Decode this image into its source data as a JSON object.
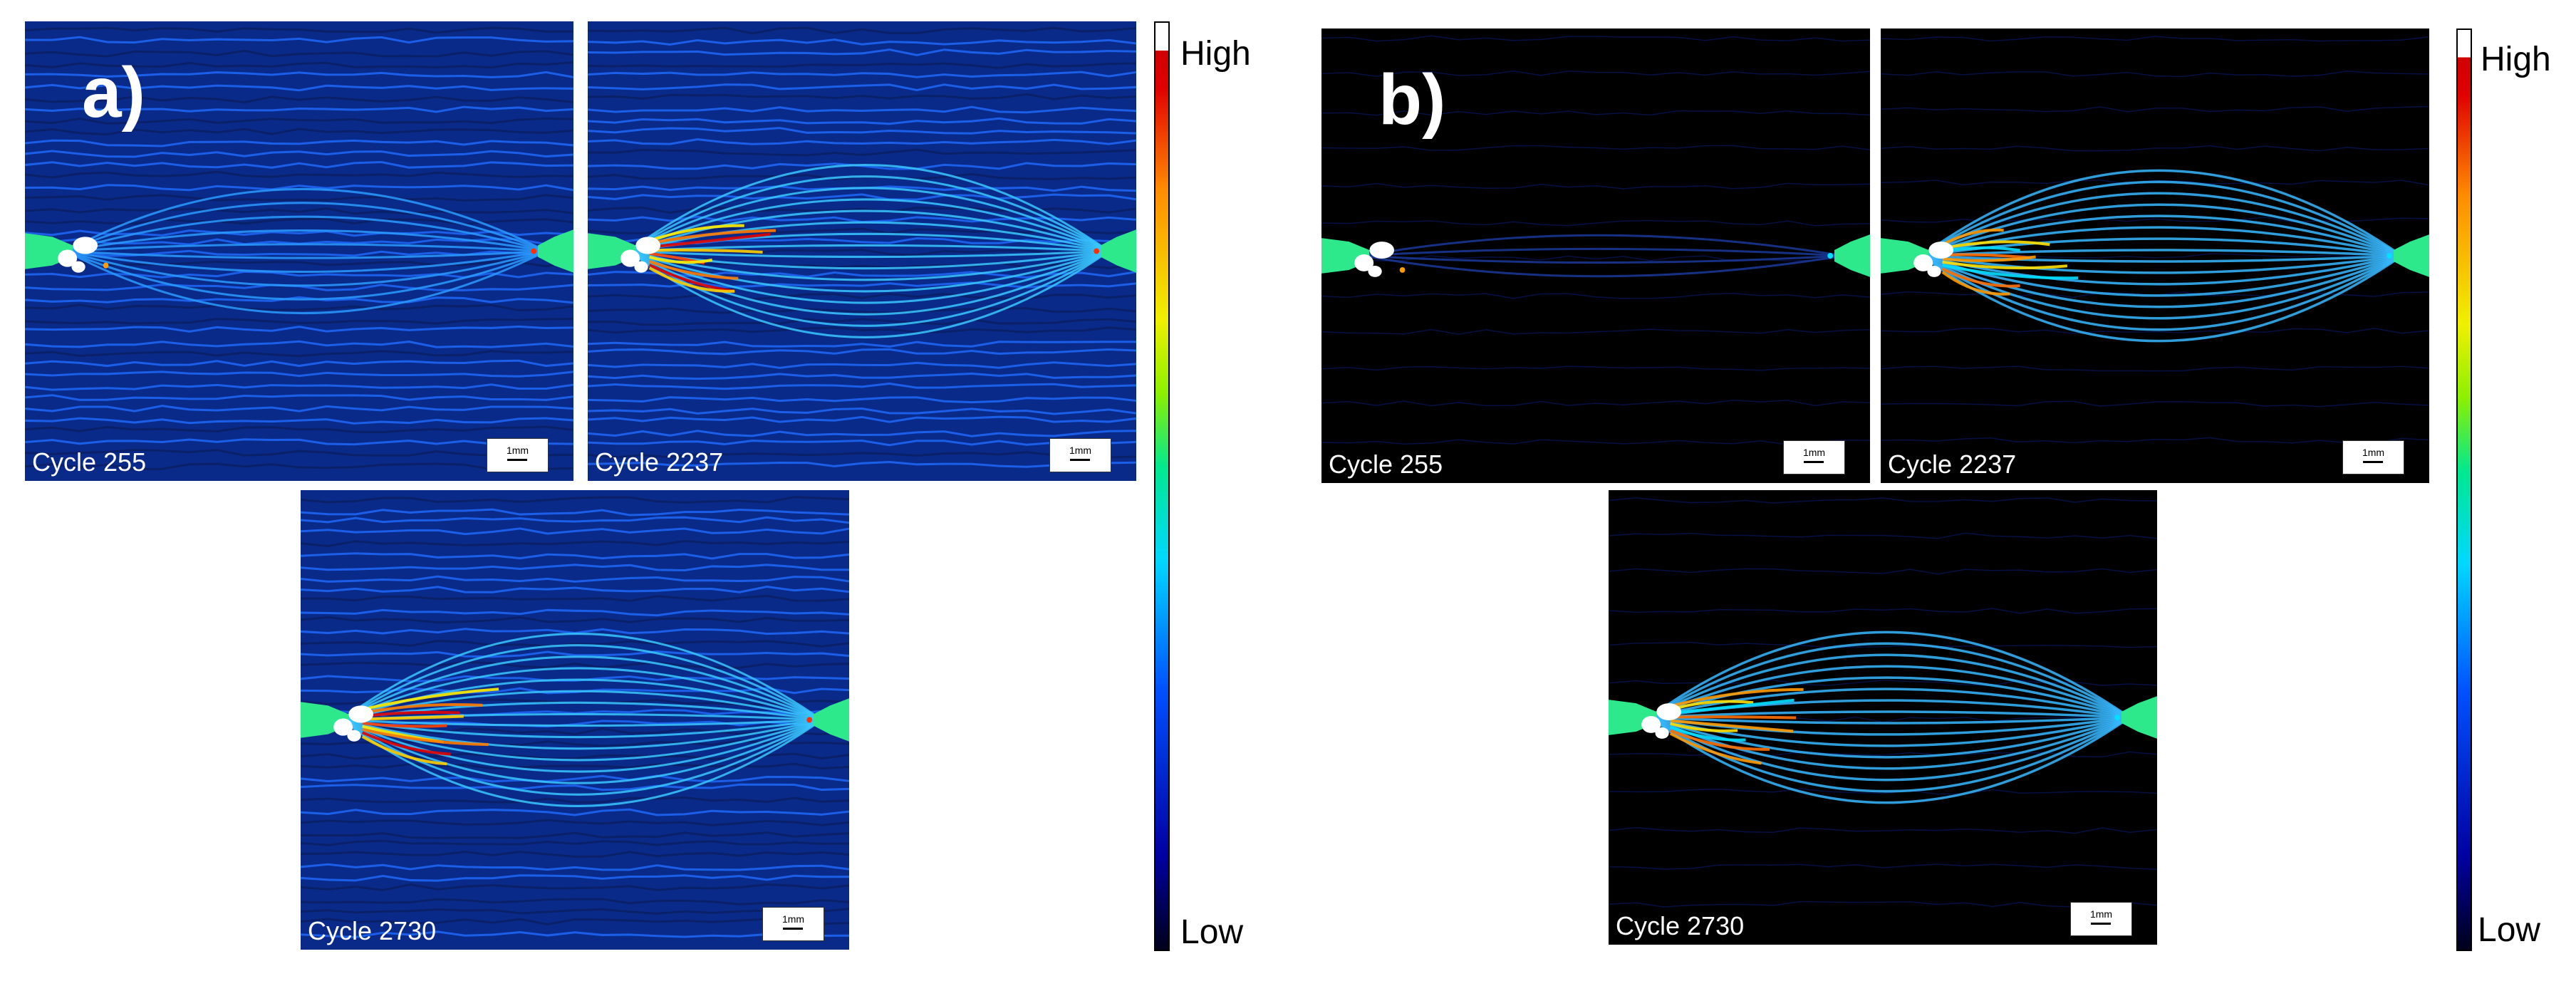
{
  "panel_a": {
    "letter": "a)",
    "frames": [
      {
        "cycle_label": "Cycle 255",
        "scale_label": "1mm"
      },
      {
        "cycle_label": "Cycle 2237",
        "scale_label": "1mm"
      },
      {
        "cycle_label": "Cycle 2730",
        "scale_label": "1mm"
      }
    ],
    "colorbar": {
      "high_label": "High",
      "low_label": "Low"
    }
  },
  "panel_b": {
    "letter": "b)",
    "frames": [
      {
        "cycle_label": "Cycle 255",
        "scale_label": "1mm"
      },
      {
        "cycle_label": "Cycle 2237",
        "scale_label": "1mm"
      },
      {
        "cycle_label": "Cycle 2730",
        "scale_label": "1mm"
      }
    ],
    "colorbar": {
      "high_label": "High",
      "low_label": "Low"
    }
  },
  "colors": {
    "colormap": [
      "#00001a",
      "#0000a0",
      "#0050ff",
      "#00d8ff",
      "#00e890",
      "#8cf000",
      "#f0f000",
      "#ff8c00",
      "#e00000",
      "#ffffff"
    ],
    "notch_green": "#2ee88c"
  }
}
